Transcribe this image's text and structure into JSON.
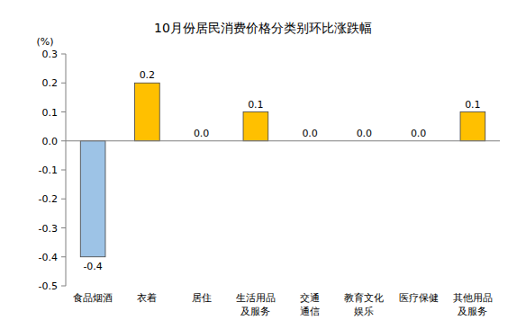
{
  "chart_data": {
    "type": "bar",
    "title": "10月份居民消费价格分类别环比涨跌幅",
    "y_label": "(%)",
    "categories": [
      "食品烟酒",
      "衣着",
      "居住",
      "生活用品\n及服务",
      "交通\n通信",
      "教育文化\n娱乐",
      "医疗保健",
      "其他用品\n及服务"
    ],
    "values": [
      -0.4,
      0.2,
      0.0,
      0.1,
      0.0,
      0.0,
      0.0,
      0.1
    ],
    "value_labels": [
      "-0.4",
      "0.2",
      "0.0",
      "0.1",
      "0.0",
      "0.0",
      "0.0",
      "0.1"
    ],
    "colors": [
      "#9dc3e6",
      "#ffc000",
      "#ffc000",
      "#ffc000",
      "#ffc000",
      "#ffc000",
      "#ffc000",
      "#ffc000"
    ],
    "ylim": [
      -0.5,
      0.3
    ],
    "yticks": [
      0.3,
      0.2,
      0.1,
      {
        "value": 0,
        "label": "0.0"
      },
      -0.1,
      -0.2,
      -0.3,
      -0.4,
      -0.5
    ],
    "grid": false,
    "data_labels": true
  }
}
